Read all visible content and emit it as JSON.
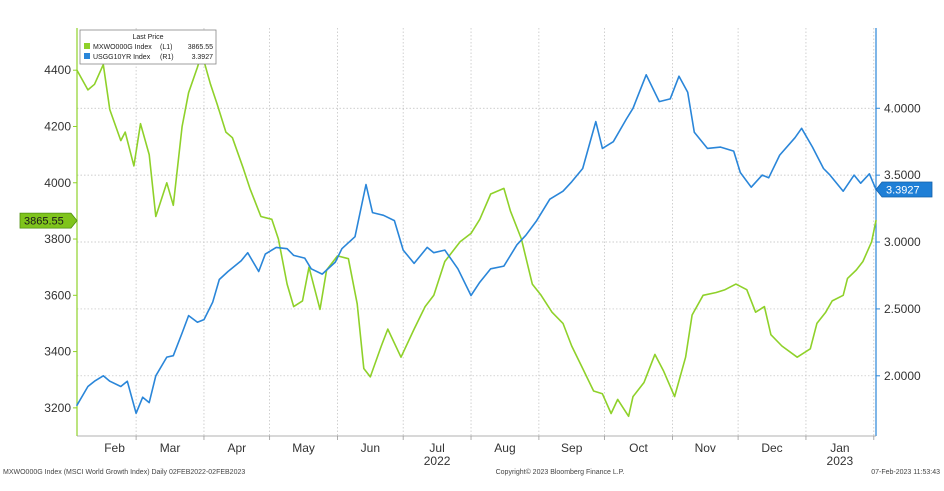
{
  "chart_data": {
    "type": "line",
    "legend": {
      "title": "Last Price",
      "placement": "top-left",
      "entries": [
        {
          "series": "MXWO000G Index",
          "axis": "(L1)",
          "last": "3865.55"
        },
        {
          "series": "USGG10YR Index",
          "axis": "(R1)",
          "last": "3.3927"
        }
      ]
    },
    "colors": {
      "msci": "#8fd12a",
      "usgg": "#2a86d9",
      "badge_msci": "#7fc41c",
      "badge_usgg": "#1f7fd6"
    },
    "months": [
      "Feb",
      "Mar",
      "Apr",
      "May",
      "Jun",
      "Jul",
      "Aug",
      "Sep",
      "Oct",
      "Nov",
      "Dec",
      "Jan"
    ],
    "years": [
      {
        "label": "2022",
        "month_index": 5
      },
      {
        "label": "2023",
        "month_index": 11
      }
    ],
    "x_range": [
      "2022-02-02",
      "2023-02-02"
    ],
    "left_axis": {
      "ylim": [
        3100,
        4550
      ],
      "ticks": [
        3200,
        3400,
        3600,
        3800,
        4000,
        4200,
        4400
      ],
      "tick_labels": [
        "3200",
        "3400",
        "3600",
        "3800",
        "4000",
        "4200",
        "4400"
      ]
    },
    "right_axis": {
      "ylim": [
        1.55,
        4.6
      ],
      "ticks": [
        2.0,
        2.5,
        3.0,
        3.5,
        4.0
      ],
      "tick_labels": [
        "2.0000",
        "2.5000",
        "3.0000",
        "3.5000",
        "4.0000"
      ]
    },
    "badges": {
      "msci": "3865.55",
      "usgg": "3.3927"
    },
    "series": [
      {
        "name": "MXWO000G Index",
        "axis": "left",
        "x": [
          "2022-02-02",
          "2022-02-07",
          "2022-02-10",
          "2022-02-14",
          "2022-02-17",
          "2022-02-22",
          "2022-02-24",
          "2022-02-28",
          "2022-03-03",
          "2022-03-07",
          "2022-03-10",
          "2022-03-15",
          "2022-03-18",
          "2022-03-22",
          "2022-03-25",
          "2022-03-29",
          "2022-03-31",
          "2022-04-04",
          "2022-04-07",
          "2022-04-11",
          "2022-04-14",
          "2022-04-19",
          "2022-04-22",
          "2022-04-27",
          "2022-05-02",
          "2022-05-05",
          "2022-05-09",
          "2022-05-12",
          "2022-05-16",
          "2022-05-19",
          "2022-05-24",
          "2022-05-27",
          "2022-06-01",
          "2022-06-06",
          "2022-06-10",
          "2022-06-13",
          "2022-06-16",
          "2022-06-21",
          "2022-06-24",
          "2022-06-30",
          "2022-07-06",
          "2022-07-11",
          "2022-07-15",
          "2022-07-20",
          "2022-07-27",
          "2022-08-01",
          "2022-08-05",
          "2022-08-10",
          "2022-08-16",
          "2022-08-19",
          "2022-08-24",
          "2022-08-29",
          "2022-09-02",
          "2022-09-07",
          "2022-09-12",
          "2022-09-16",
          "2022-09-21",
          "2022-09-26",
          "2022-09-30",
          "2022-10-04",
          "2022-10-07",
          "2022-10-12",
          "2022-10-14",
          "2022-10-19",
          "2022-10-24",
          "2022-10-28",
          "2022-11-02",
          "2022-11-07",
          "2022-11-10",
          "2022-11-15",
          "2022-11-21",
          "2022-11-25",
          "2022-11-30",
          "2022-12-05",
          "2022-12-09",
          "2022-12-13",
          "2022-12-16",
          "2022-12-21",
          "2022-12-28",
          "2023-01-03",
          "2023-01-06",
          "2023-01-10",
          "2023-01-13",
          "2023-01-18",
          "2023-01-20",
          "2023-01-24",
          "2023-01-27",
          "2023-01-31",
          "2023-02-02"
        ],
        "values": [
          4400,
          4330,
          4350,
          4420,
          4260,
          4150,
          4180,
          4060,
          4210,
          4100,
          3880,
          4000,
          3920,
          4200,
          4320,
          4410,
          4460,
          4350,
          4280,
          4180,
          4160,
          4050,
          3980,
          3880,
          3870,
          3800,
          3640,
          3560,
          3580,
          3700,
          3550,
          3690,
          3740,
          3730,
          3570,
          3340,
          3310,
          3420,
          3480,
          3380,
          3480,
          3560,
          3600,
          3720,
          3790,
          3820,
          3870,
          3960,
          3980,
          3900,
          3800,
          3640,
          3600,
          3540,
          3500,
          3420,
          3340,
          3260,
          3250,
          3180,
          3230,
          3170,
          3240,
          3290,
          3390,
          3330,
          3240,
          3380,
          3530,
          3600,
          3610,
          3620,
          3640,
          3620,
          3540,
          3560,
          3460,
          3420,
          3380,
          3410,
          3500,
          3540,
          3580,
          3600,
          3660,
          3690,
          3720,
          3790,
          3865.55
        ]
      },
      {
        "name": "USGG10YR Index",
        "axis": "right",
        "x": [
          "2022-02-02",
          "2022-02-07",
          "2022-02-10",
          "2022-02-14",
          "2022-02-17",
          "2022-02-22",
          "2022-02-25",
          "2022-03-01",
          "2022-03-04",
          "2022-03-07",
          "2022-03-10",
          "2022-03-15",
          "2022-03-18",
          "2022-03-22",
          "2022-03-25",
          "2022-03-29",
          "2022-04-01",
          "2022-04-05",
          "2022-04-08",
          "2022-04-12",
          "2022-04-18",
          "2022-04-21",
          "2022-04-26",
          "2022-04-29",
          "2022-05-04",
          "2022-05-09",
          "2022-05-12",
          "2022-05-17",
          "2022-05-20",
          "2022-05-25",
          "2022-05-31",
          "2022-06-03",
          "2022-06-09",
          "2022-06-14",
          "2022-06-17",
          "2022-06-22",
          "2022-06-27",
          "2022-07-01",
          "2022-07-06",
          "2022-07-12",
          "2022-07-15",
          "2022-07-20",
          "2022-07-26",
          "2022-08-01",
          "2022-08-05",
          "2022-08-10",
          "2022-08-16",
          "2022-08-22",
          "2022-08-26",
          "2022-08-31",
          "2022-09-06",
          "2022-09-12",
          "2022-09-16",
          "2022-09-21",
          "2022-09-27",
          "2022-09-30",
          "2022-10-05",
          "2022-10-11",
          "2022-10-14",
          "2022-10-20",
          "2022-10-26",
          "2022-10-31",
          "2022-11-04",
          "2022-11-08",
          "2022-11-11",
          "2022-11-17",
          "2022-11-23",
          "2022-11-29",
          "2022-12-02",
          "2022-12-07",
          "2022-12-12",
          "2022-12-15",
          "2022-12-20",
          "2022-12-27",
          "2022-12-30",
          "2023-01-04",
          "2023-01-09",
          "2023-01-12",
          "2023-01-18",
          "2023-01-23",
          "2023-01-26",
          "2023-01-30",
          "2023-02-02"
        ],
        "values": [
          1.78,
          1.92,
          1.96,
          2.0,
          1.96,
          1.92,
          1.96,
          1.72,
          1.84,
          1.8,
          2.0,
          2.14,
          2.15,
          2.32,
          2.45,
          2.4,
          2.42,
          2.55,
          2.72,
          2.78,
          2.86,
          2.92,
          2.78,
          2.91,
          2.96,
          2.95,
          2.9,
          2.88,
          2.8,
          2.76,
          2.85,
          2.95,
          3.04,
          3.43,
          3.22,
          3.2,
          3.16,
          2.94,
          2.84,
          2.96,
          2.92,
          2.94,
          2.8,
          2.6,
          2.7,
          2.8,
          2.82,
          2.98,
          3.05,
          3.16,
          3.32,
          3.38,
          3.45,
          3.55,
          3.9,
          3.7,
          3.75,
          3.92,
          4.0,
          4.25,
          4.05,
          4.07,
          4.24,
          4.12,
          3.82,
          3.7,
          3.71,
          3.68,
          3.52,
          3.41,
          3.5,
          3.48,
          3.65,
          3.78,
          3.85,
          3.71,
          3.55,
          3.5,
          3.38,
          3.5,
          3.44,
          3.51,
          3.3927
        ]
      }
    ],
    "footer": {
      "left": "MXWO000G Index (MSCI World Growth Index) Daily 02FEB2022-02FEB2023",
      "center": "Copyright© 2023 Bloomberg Finance L.P.",
      "right": "07-Feb-2023 11:53:43"
    }
  }
}
